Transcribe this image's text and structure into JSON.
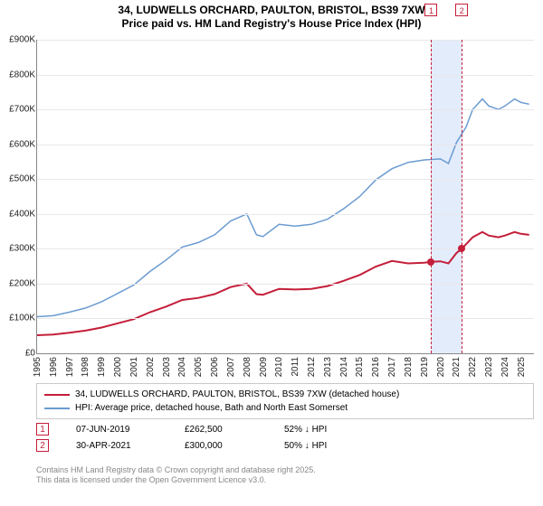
{
  "title": {
    "line1": "34, LUDWELLS ORCHARD, PAULTON, BRISTOL, BS39 7XW",
    "line2": "Price paid vs. HM Land Registry's House Price Index (HPI)",
    "fontsize": 12
  },
  "chart": {
    "type": "line",
    "xlim": [
      1995,
      2025.8
    ],
    "ylim": [
      0,
      900000
    ],
    "ytick_step": 100000,
    "yticks_labels": [
      "£0",
      "£100K",
      "£200K",
      "£300K",
      "£400K",
      "£500K",
      "£600K",
      "£700K",
      "£800K",
      "£900K"
    ],
    "xticks": [
      1995,
      1996,
      1997,
      1998,
      1999,
      2000,
      2001,
      2002,
      2003,
      2004,
      2005,
      2006,
      2007,
      2008,
      2009,
      2010,
      2011,
      2012,
      2013,
      2014,
      2015,
      2016,
      2017,
      2018,
      2019,
      2020,
      2021,
      2022,
      2023,
      2024,
      2025
    ],
    "grid_color": "#e8e8e8",
    "background_color": "#ffffff",
    "series": [
      {
        "name": "HPI: Average price, detached house, Bath and North East Somerset",
        "color": "#6b9bd1",
        "line_width": 1.5,
        "data": [
          [
            1995,
            105000
          ],
          [
            1996,
            108000
          ],
          [
            1997,
            118000
          ],
          [
            1998,
            130000
          ],
          [
            1999,
            148000
          ],
          [
            2000,
            172000
          ],
          [
            2001,
            196000
          ],
          [
            2002,
            235000
          ],
          [
            2003,
            268000
          ],
          [
            2004,
            305000
          ],
          [
            2005,
            318000
          ],
          [
            2006,
            340000
          ],
          [
            2007,
            380000
          ],
          [
            2008,
            400000
          ],
          [
            2008.6,
            340000
          ],
          [
            2009,
            335000
          ],
          [
            2010,
            370000
          ],
          [
            2011,
            365000
          ],
          [
            2012,
            370000
          ],
          [
            2013,
            385000
          ],
          [
            2014,
            415000
          ],
          [
            2015,
            450000
          ],
          [
            2016,
            498000
          ],
          [
            2017,
            530000
          ],
          [
            2018,
            548000
          ],
          [
            2019,
            555000
          ],
          [
            2020,
            558000
          ],
          [
            2020.5,
            545000
          ],
          [
            2021,
            605000
          ],
          [
            2021.6,
            650000
          ],
          [
            2022,
            700000
          ],
          [
            2022.6,
            730000
          ],
          [
            2023,
            710000
          ],
          [
            2023.6,
            700000
          ],
          [
            2024,
            710000
          ],
          [
            2024.6,
            730000
          ],
          [
            2025,
            720000
          ],
          [
            2025.5,
            715000
          ]
        ]
      },
      {
        "name": "34, LUDWELLS ORCHARD, PAULTON, BRISTOL, BS39 7XW (detached house)",
        "color": "#c41e3a",
        "line_width": 2,
        "data": [
          [
            1995,
            52000
          ],
          [
            1996,
            54000
          ],
          [
            1997,
            59000
          ],
          [
            1998,
            65000
          ],
          [
            1999,
            74000
          ],
          [
            2000,
            86000
          ],
          [
            2001,
            98000
          ],
          [
            2002,
            118000
          ],
          [
            2003,
            134000
          ],
          [
            2004,
            153000
          ],
          [
            2005,
            159000
          ],
          [
            2006,
            170000
          ],
          [
            2007,
            190000
          ],
          [
            2008,
            200000
          ],
          [
            2008.6,
            170000
          ],
          [
            2009,
            168000
          ],
          [
            2010,
            185000
          ],
          [
            2011,
            183000
          ],
          [
            2012,
            185000
          ],
          [
            2013,
            193000
          ],
          [
            2014,
            208000
          ],
          [
            2015,
            225000
          ],
          [
            2016,
            249000
          ],
          [
            2017,
            265000
          ],
          [
            2018,
            258000
          ],
          [
            2019,
            260000
          ],
          [
            2019.43,
            262500
          ],
          [
            2020,
            264000
          ],
          [
            2020.5,
            258000
          ],
          [
            2021,
            288000
          ],
          [
            2021.33,
            300000
          ],
          [
            2022,
            333000
          ],
          [
            2022.6,
            348000
          ],
          [
            2023,
            338000
          ],
          [
            2023.6,
            333000
          ],
          [
            2024,
            338000
          ],
          [
            2024.6,
            348000
          ],
          [
            2025,
            343000
          ],
          [
            2025.5,
            340000
          ]
        ]
      }
    ],
    "markers": [
      {
        "id": "1",
        "x": 2019.43,
        "y": 262500,
        "color": "#c41e3a"
      },
      {
        "id": "2",
        "x": 2021.33,
        "y": 300000,
        "color": "#c41e3a"
      }
    ],
    "marker_band": {
      "x_from": 2019.43,
      "x_to": 2021.33,
      "color": "#e3ecfb"
    }
  },
  "legend": {
    "items": [
      {
        "swatch_color": "#c41e3a",
        "label": "34, LUDWELLS ORCHARD, PAULTON, BRISTOL, BS39 7XW (detached house)"
      },
      {
        "swatch_color": "#6b9bd1",
        "label": "HPI: Average price, detached house, Bath and North East Somerset"
      }
    ]
  },
  "datapoints": [
    {
      "tag": "1",
      "date": "07-JUN-2019",
      "price": "£262,500",
      "pct": "52% ↓ HPI"
    },
    {
      "tag": "2",
      "date": "30-APR-2021",
      "price": "£300,000",
      "pct": "50% ↓ HPI"
    }
  ],
  "footer": {
    "line1": "Contains HM Land Registry data © Crown copyright and database right 2025.",
    "line2": "This data is licensed under the Open Government Licence v3.0."
  }
}
